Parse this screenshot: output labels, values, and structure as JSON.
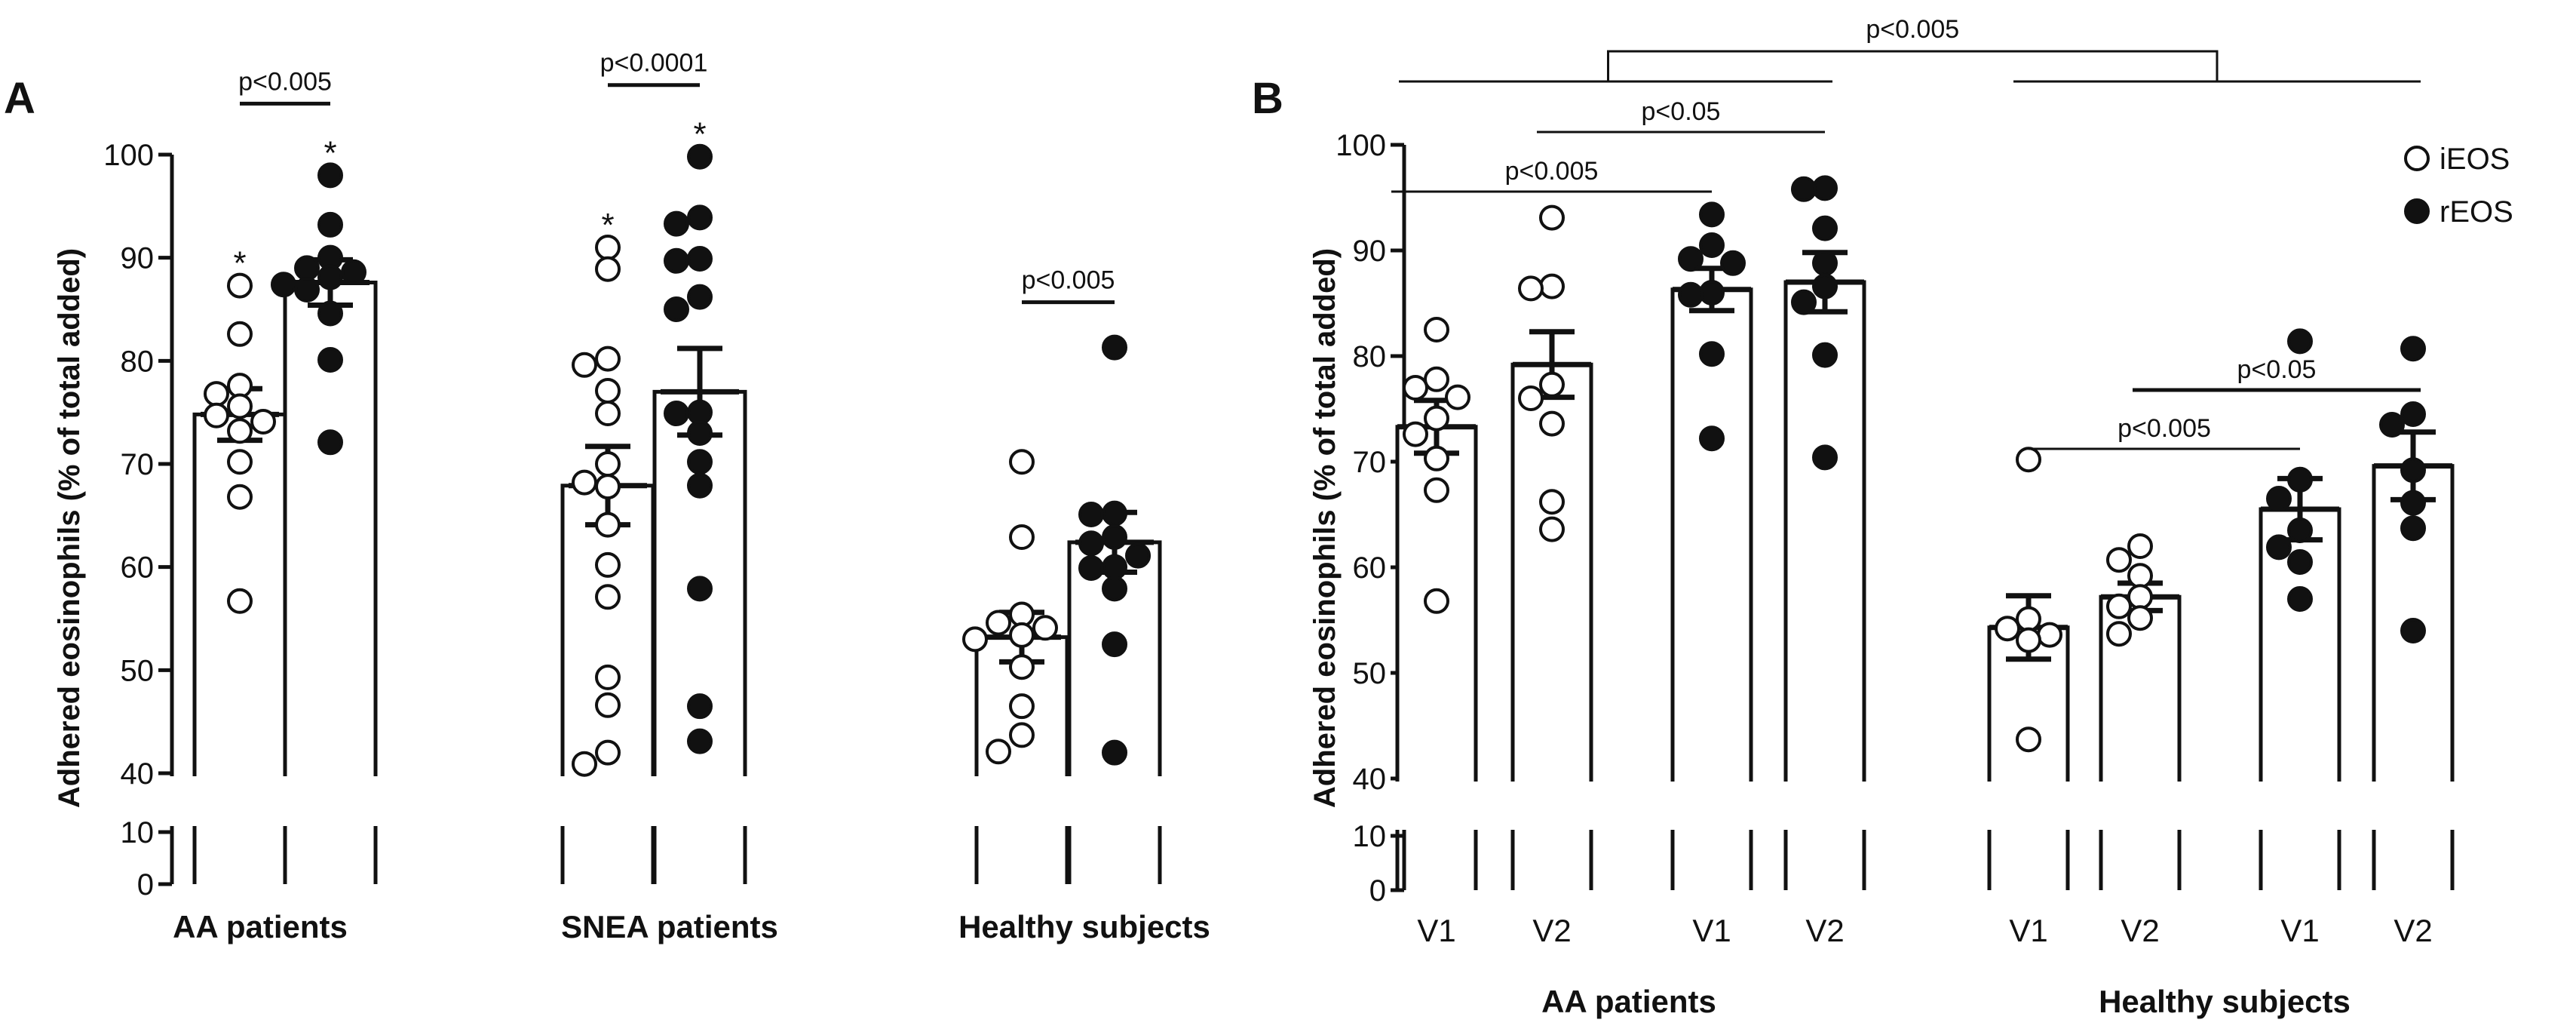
{
  "chart_data": [
    {
      "panel": "A",
      "type": "bar",
      "ylabel": "Adhered eosinophils (% of total added)",
      "ylim": [
        0,
        100
      ],
      "yticks": [
        0,
        10,
        40,
        50,
        60,
        70,
        80,
        90,
        100
      ],
      "axis_break": [
        10,
        40
      ],
      "groups": [
        {
          "label": "AA patients",
          "bars": [
            {
              "cell": "iEOS",
              "mean": 74.8,
              "sem": 2.5,
              "star": "*",
              "points": [
                87.3,
                82.6,
                77.6,
                76.8,
                75.6,
                74.7,
                74.1,
                73.2,
                70.2,
                66.8,
                56.7
              ]
            },
            {
              "cell": "rEOS",
              "mean": 87.6,
              "sem": 2.2,
              "star": "*",
              "points": [
                98.0,
                93.2,
                90.0,
                89.0,
                88.6,
                88.1,
                87.4,
                86.9,
                84.6,
                80.1,
                72.1
              ]
            }
          ],
          "comparison": "p<0.005"
        },
        {
          "label": "SNEA patients",
          "bars": [
            {
              "cell": "iEOS",
              "mean": 67.9,
              "sem": 3.8,
              "star": "*",
              "points": [
                91.0,
                88.9,
                80.2,
                79.6,
                77.1,
                74.9,
                70.0,
                68.2,
                67.8,
                64.1,
                60.2,
                57.1,
                49.3,
                46.6,
                42.0,
                40.9
              ]
            },
            {
              "cell": "rEOS",
              "mean": 77.0,
              "sem": 4.2,
              "star": "*",
              "points": [
                99.8,
                93.9,
                93.3,
                89.9,
                89.7,
                86.2,
                85.0,
                75.0,
                74.9,
                73.0,
                70.2,
                67.9,
                57.9,
                46.5,
                43.1
              ]
            }
          ],
          "comparison": "p<0.0001"
        },
        {
          "label": "Healthy subjects",
          "bars": [
            {
              "cell": "iEOS",
              "mean": 53.2,
              "sem": 2.4,
              "points": [
                70.2,
                62.9,
                55.4,
                54.6,
                54.1,
                53.4,
                53.0,
                50.3,
                46.5,
                43.7,
                42.1
              ]
            },
            {
              "cell": "rEOS",
              "mean": 62.4,
              "sem": 2.9,
              "points": [
                81.3,
                65.2,
                65.1,
                62.9,
                62.3,
                61.1,
                60.0,
                59.9,
                57.9,
                52.5,
                42.0
              ]
            }
          ],
          "comparison": "p<0.005"
        }
      ]
    },
    {
      "panel": "B",
      "type": "bar",
      "ylabel": "Adhered eosinophils (% of total added)",
      "ylim": [
        0,
        100
      ],
      "yticks": [
        0,
        10,
        40,
        50,
        60,
        70,
        80,
        90,
        100
      ],
      "axis_break": [
        10,
        40
      ],
      "legend": [
        {
          "label": "iEOS",
          "marker": "open-circle"
        },
        {
          "label": "rEOS",
          "marker": "filled-circle"
        }
      ],
      "legend_position": "top-right",
      "groups": [
        {
          "label": "AA patients",
          "bars": [
            {
              "visit": "V1",
              "cell": "iEOS",
              "mean": 73.3,
              "sem": 2.5,
              "points": [
                82.5,
                77.8,
                77.0,
                76.1,
                74.1,
                72.6,
                70.3,
                67.3,
                56.8
              ]
            },
            {
              "visit": "V2",
              "cell": "iEOS",
              "mean": 79.2,
              "sem": 3.1,
              "points": [
                93.1,
                86.6,
                86.4,
                77.3,
                76.0,
                73.6,
                66.2,
                63.6
              ]
            },
            {
              "visit": "V1",
              "cell": "rEOS",
              "mean": 86.3,
              "sem": 2.0,
              "points": [
                93.4,
                90.5,
                89.2,
                88.8,
                86.0,
                85.8,
                80.2,
                72.2
              ]
            },
            {
              "visit": "V2",
              "cell": "rEOS",
              "mean": 87.0,
              "sem": 2.8,
              "points": [
                95.9,
                95.8,
                92.1,
                88.8,
                86.6,
                85.1,
                80.1,
                70.4
              ]
            }
          ]
        },
        {
          "label": "Healthy subjects",
          "bars": [
            {
              "visit": "V1",
              "cell": "iEOS",
              "mean": 54.3,
              "sem": 3.0,
              "points": [
                70.2,
                55.1,
                54.2,
                53.6,
                53.1,
                43.7
              ]
            },
            {
              "visit": "V2",
              "cell": "iEOS",
              "mean": 57.2,
              "sem": 1.3,
              "points": [
                62.0,
                60.7,
                59.2,
                57.2,
                56.3,
                55.2,
                53.7
              ]
            },
            {
              "visit": "V1",
              "cell": "rEOS",
              "mean": 65.5,
              "sem": 2.9,
              "points": [
                81.4,
                68.3,
                66.5,
                63.5,
                61.9,
                60.5,
                57.0
              ]
            },
            {
              "visit": "V2",
              "cell": "rEOS",
              "mean": 69.6,
              "sem": 3.2,
              "points": [
                80.7,
                74.5,
                73.5,
                69.2,
                66.1,
                63.7,
                54.0
              ]
            }
          ]
        }
      ],
      "comparisons": [
        {
          "between": "AA patients vs Healthy subjects",
          "label": "p<0.005"
        },
        {
          "between": "AA V2 iEOS vs AA V2 rEOS",
          "label": "p<0.05"
        },
        {
          "between": "AA V1 iEOS vs AA V1 rEOS",
          "label": "p<0.005"
        },
        {
          "between": "Healthy V1 iEOS vs Healthy V1 rEOS",
          "label": "p<0.005"
        },
        {
          "between": "Healthy V2 iEOS vs Healthy V2 rEOS",
          "label": "p<0.05"
        }
      ]
    }
  ]
}
